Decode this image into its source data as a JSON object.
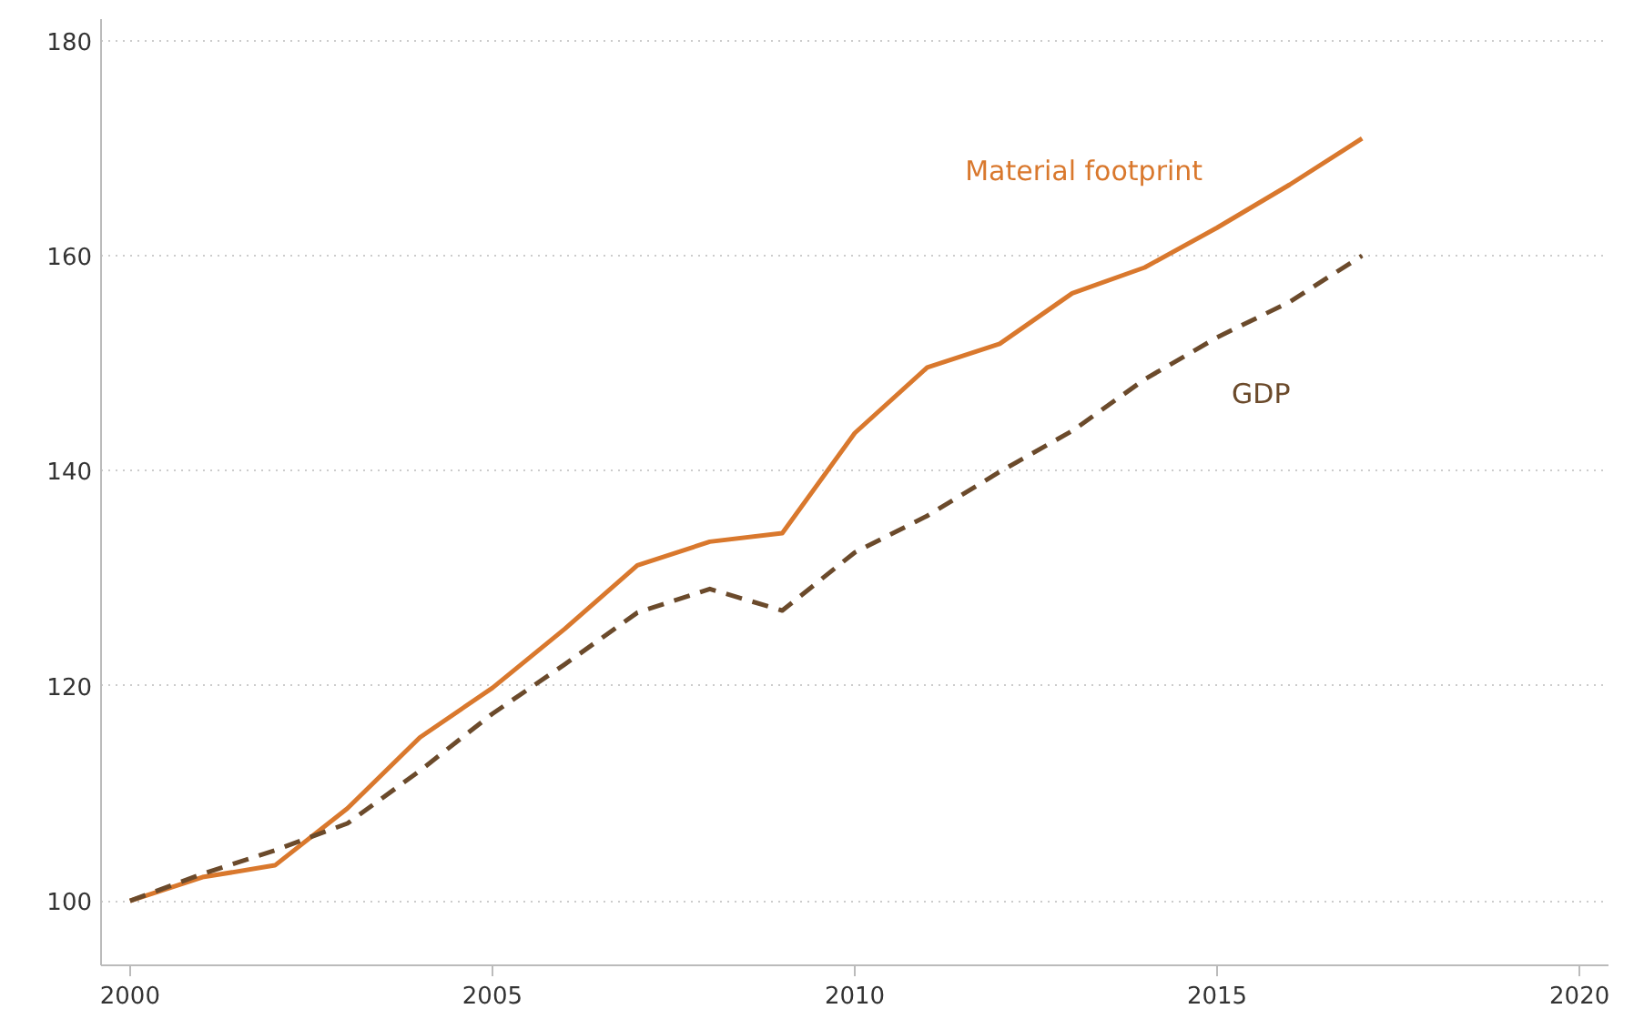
{
  "chart_data": {
    "type": "line",
    "x": [
      2000,
      2001,
      2002,
      2003,
      2004,
      2005,
      2006,
      2007,
      2008,
      2009,
      2010,
      2011,
      2012,
      2013,
      2014,
      2015,
      2016,
      2017
    ],
    "series": [
      {
        "name": "Material footprint",
        "color": "#d9782d",
        "line_style": "solid",
        "values": [
          100,
          102.2,
          103.3,
          108.6,
          115.2,
          119.8,
          125.3,
          131.2,
          133.4,
          134.2,
          143.5,
          149.6,
          151.8,
          156.5,
          158.9,
          162.6,
          166.6,
          170.9
        ]
      },
      {
        "name": "GDP",
        "color": "#6b4a2b",
        "line_style": "dashed",
        "values": [
          100,
          102.5,
          104.7,
          107.2,
          112.1,
          117.4,
          122,
          126.8,
          129,
          127,
          132.4,
          135.8,
          139.9,
          143.7,
          148.5,
          152.4,
          155.7,
          160
        ]
      }
    ],
    "xlim": [
      1999.6,
      2020.4
    ],
    "ylim": [
      94,
      182
    ],
    "xticks": [
      2000,
      2005,
      2010,
      2015,
      2020
    ],
    "yticks": [
      100,
      120,
      140,
      160,
      180
    ],
    "grid": "y",
    "marker": "none"
  }
}
